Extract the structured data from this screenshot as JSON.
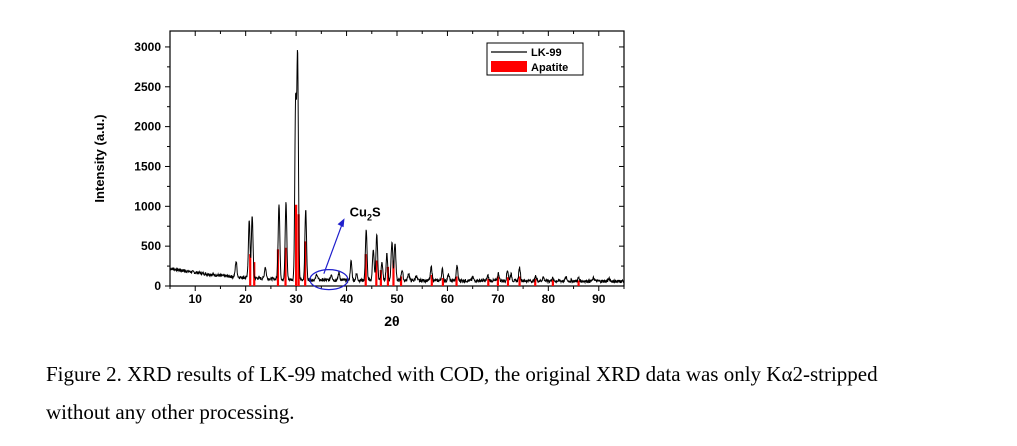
{
  "chart_data": {
    "type": "line",
    "title": "",
    "xlabel": "2θ",
    "ylabel": "Intensity (a.u.)",
    "xlim": [
      5,
      95
    ],
    "ylim": [
      0,
      3200
    ],
    "x_ticks": [
      10,
      20,
      30,
      40,
      50,
      60,
      70,
      80,
      90
    ],
    "y_ticks": [
      0,
      500,
      1000,
      1500,
      2000,
      2500,
      3000
    ],
    "legend": [
      {
        "name": "LK-99",
        "color": "#000000",
        "style": "line"
      },
      {
        "name": "Apatite",
        "color": "#ff0000",
        "style": "bar"
      }
    ],
    "legend_position": "top-right",
    "annotation": {
      "text": "Cu",
      "subscript": "2",
      "suffix": "S",
      "target_x": 36.5,
      "target_y": 80,
      "label_x": 41,
      "label_y": 870
    },
    "series": [
      {
        "name": "LK-99",
        "type": "line",
        "color": "#000000",
        "baseline": [
          [
            5,
            220
          ],
          [
            10,
            170
          ],
          [
            15,
            130
          ],
          [
            20,
            105
          ],
          [
            25,
            90
          ],
          [
            30,
            80
          ],
          [
            35,
            75
          ],
          [
            40,
            72
          ],
          [
            50,
            70
          ],
          [
            60,
            68
          ],
          [
            70,
            66
          ],
          [
            80,
            64
          ],
          [
            95,
            60
          ]
        ],
        "peaks": [
          {
            "x": 18.1,
            "y": 310
          },
          {
            "x": 20.7,
            "y": 820
          },
          {
            "x": 21.3,
            "y": 880
          },
          {
            "x": 23.9,
            "y": 240
          },
          {
            "x": 26.6,
            "y": 1040
          },
          {
            "x": 28.0,
            "y": 1050
          },
          {
            "x": 29.9,
            "y": 2280
          },
          {
            "x": 30.3,
            "y": 2860
          },
          {
            "x": 31.9,
            "y": 960
          },
          {
            "x": 34.1,
            "y": 150
          },
          {
            "x": 37.0,
            "y": 150
          },
          {
            "x": 38.5,
            "y": 170
          },
          {
            "x": 40.9,
            "y": 310
          },
          {
            "x": 42.0,
            "y": 150
          },
          {
            "x": 43.9,
            "y": 710
          },
          {
            "x": 45.3,
            "y": 470
          },
          {
            "x": 46.0,
            "y": 650
          },
          {
            "x": 47.0,
            "y": 300
          },
          {
            "x": 48.0,
            "y": 400
          },
          {
            "x": 49.0,
            "y": 560
          },
          {
            "x": 49.6,
            "y": 540
          },
          {
            "x": 51.0,
            "y": 200
          },
          {
            "x": 52.3,
            "y": 160
          },
          {
            "x": 53.8,
            "y": 130
          },
          {
            "x": 56.8,
            "y": 240
          },
          {
            "x": 59.0,
            "y": 210
          },
          {
            "x": 60.2,
            "y": 140
          },
          {
            "x": 61.9,
            "y": 250
          },
          {
            "x": 65.0,
            "y": 110
          },
          {
            "x": 68.0,
            "y": 130
          },
          {
            "x": 70.1,
            "y": 160
          },
          {
            "x": 71.9,
            "y": 200
          },
          {
            "x": 72.6,
            "y": 150
          },
          {
            "x": 74.3,
            "y": 230
          },
          {
            "x": 77.5,
            "y": 120
          },
          {
            "x": 79.0,
            "y": 110
          },
          {
            "x": 80.8,
            "y": 100
          },
          {
            "x": 83.5,
            "y": 110
          },
          {
            "x": 86.0,
            "y": 100
          },
          {
            "x": 89.0,
            "y": 100
          },
          {
            "x": 92.0,
            "y": 90
          }
        ]
      },
      {
        "name": "Apatite",
        "type": "stick",
        "color": "#ff0000",
        "peaks": [
          {
            "x": 20.9,
            "y": 400
          },
          {
            "x": 21.7,
            "y": 300
          },
          {
            "x": 26.4,
            "y": 460
          },
          {
            "x": 27.9,
            "y": 480
          },
          {
            "x": 30.0,
            "y": 1020
          },
          {
            "x": 30.5,
            "y": 900
          },
          {
            "x": 31.8,
            "y": 560
          },
          {
            "x": 43.8,
            "y": 400
          },
          {
            "x": 45.9,
            "y": 320
          },
          {
            "x": 46.8,
            "y": 200
          },
          {
            "x": 48.2,
            "y": 240
          },
          {
            "x": 49.3,
            "y": 320
          },
          {
            "x": 50.8,
            "y": 120
          },
          {
            "x": 56.9,
            "y": 140
          },
          {
            "x": 59.1,
            "y": 100
          },
          {
            "x": 61.8,
            "y": 120
          },
          {
            "x": 68.1,
            "y": 90
          },
          {
            "x": 70.0,
            "y": 120
          },
          {
            "x": 72.0,
            "y": 110
          },
          {
            "x": 74.3,
            "y": 120
          },
          {
            "x": 77.4,
            "y": 90
          },
          {
            "x": 80.9,
            "y": 80
          },
          {
            "x": 86.0,
            "y": 70
          }
        ]
      }
    ]
  },
  "caption": {
    "line1": "Figure 2. XRD results of LK-99 matched with COD, the original XRD data was only Kα2-stripped",
    "line2": "without any other processing."
  }
}
